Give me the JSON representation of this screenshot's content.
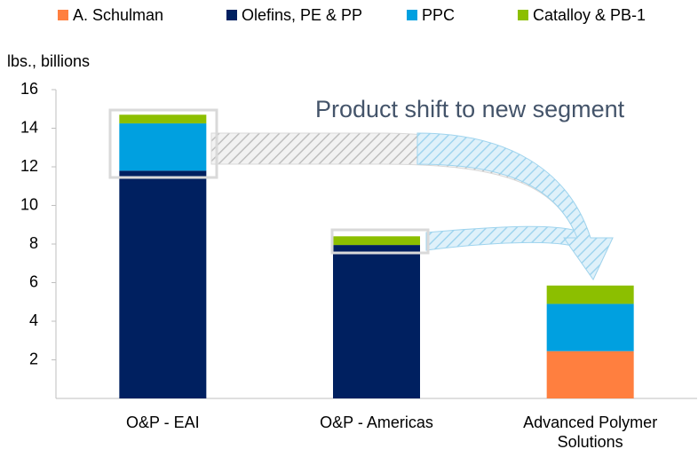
{
  "chart_data": {
    "type": "bar",
    "stacked": true,
    "y_label": "lbs., billions",
    "annotation": "Product shift to new segment",
    "categories": [
      "O&P - EAI",
      "O&P - Americas",
      "Advanced Polymer Solutions"
    ],
    "series": [
      {
        "name": "A. Schulman",
        "color": "#ff7f3f",
        "values": [
          0,
          0,
          2.45
        ]
      },
      {
        "name": "Olefins, PE & PP",
        "color": "#002060",
        "values": [
          11.8,
          7.95,
          0
        ]
      },
      {
        "name": "PPC",
        "color": "#00a0e0",
        "values": [
          2.45,
          0,
          2.45
        ]
      },
      {
        "name": "Catalloy & PB-1",
        "color": "#8cbf00",
        "values": [
          0.45,
          0.45,
          0.95
        ]
      }
    ],
    "ylim": [
      0,
      16
    ],
    "yticks": [
      2,
      4,
      6,
      8,
      10,
      12,
      14,
      16
    ],
    "grid": false
  }
}
